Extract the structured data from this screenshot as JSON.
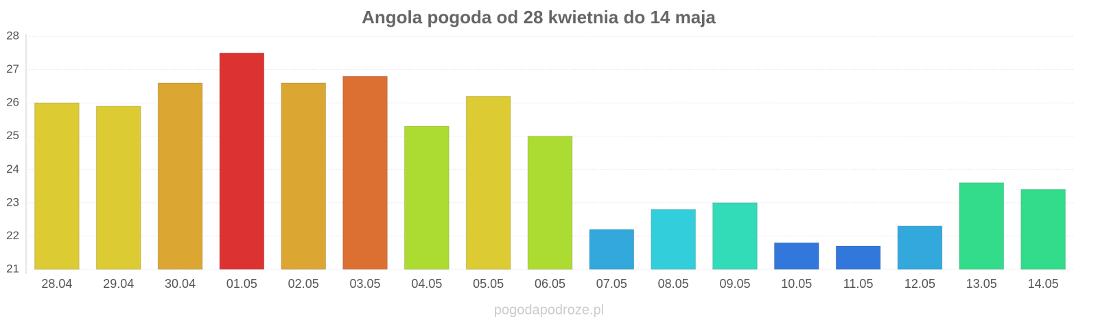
{
  "chart_data": {
    "type": "bar",
    "title": "Angola pogoda od 28 kwietnia do 14 maja",
    "categories": [
      "28.04",
      "29.04",
      "30.04",
      "01.05",
      "02.05",
      "03.05",
      "04.05",
      "05.05",
      "06.05",
      "07.05",
      "08.05",
      "09.05",
      "10.05",
      "11.05",
      "12.05",
      "13.05",
      "14.05"
    ],
    "values": [
      26.0,
      25.9,
      26.6,
      27.5,
      26.6,
      26.8,
      25.3,
      26.2,
      25.0,
      22.2,
      22.8,
      23.0,
      21.8,
      21.7,
      22.3,
      23.6,
      23.4
    ],
    "colors": [
      "#dccb32",
      "#dccb32",
      "#dca632",
      "#dc3232",
      "#dca632",
      "#dc7032",
      "#acdc32",
      "#dccb32",
      "#acdc32",
      "#32a8dc",
      "#32cedc",
      "#32dcb8",
      "#3278dc",
      "#3278dc",
      "#32a8dc",
      "#32dc8a",
      "#32dc8a"
    ],
    "ylim": [
      21,
      28
    ],
    "yticks": [
      21,
      22,
      23,
      24,
      25,
      26,
      27,
      28
    ],
    "grid": true,
    "watermark": "pogodapodroze.pl"
  }
}
